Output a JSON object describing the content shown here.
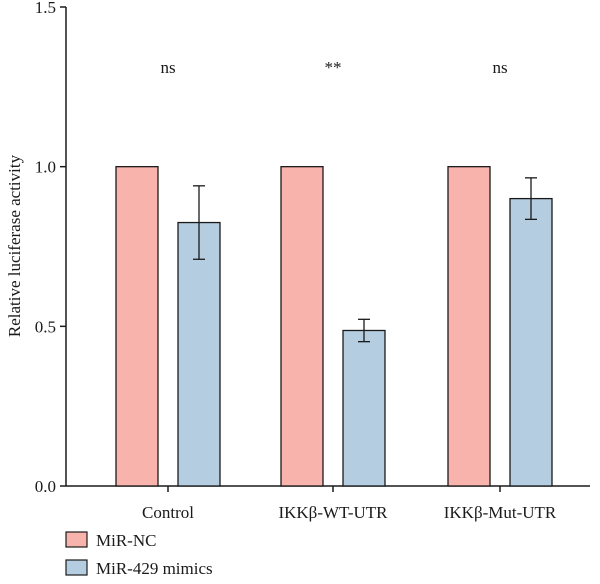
{
  "chart_data": {
    "type": "bar",
    "categories": [
      "Control",
      "IKKβ-WT-UTR",
      "IKKβ-Mut-UTR"
    ],
    "series": [
      {
        "name": "MiR-NC",
        "values": [
          1.0,
          1.0,
          1.0
        ],
        "errors": [
          0,
          0,
          0
        ],
        "color": "#f9b3ad"
      },
      {
        "name": "MiR-429 mimics",
        "values": [
          0.825,
          0.487,
          0.9
        ],
        "errors": [
          0.115,
          0.035,
          0.065
        ],
        "color": "#b4cde0"
      }
    ],
    "significance": [
      "ns",
      "**",
      "ns"
    ],
    "title": "",
    "xlabel": "",
    "ylabel": "Relative luciferase activity",
    "ylim": [
      0,
      1.5
    ],
    "yticks": [
      "0.0",
      "0.5",
      "1.0",
      "1.5"
    ],
    "grid": false,
    "legend_position": "bottom-left",
    "colors": {
      "axis": "#1a1a1a",
      "bar_edge": "#1a1a1a"
    }
  }
}
